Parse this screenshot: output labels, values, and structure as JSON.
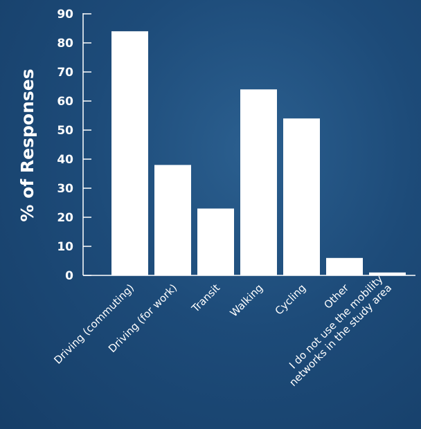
{
  "chart_data": {
    "type": "bar",
    "title": "",
    "xlabel": "",
    "ylabel": "% of Responses",
    "ylim": [
      0,
      90
    ],
    "yticks": [
      0,
      10,
      20,
      30,
      40,
      50,
      60,
      70,
      80,
      90
    ],
    "grid": false,
    "categories": [
      "Driving (commuting)",
      "Driving (for work)",
      "Transit",
      "Walking",
      "Cycling",
      "Other",
      [
        "I do not use the mobility",
        "networks in the study area"
      ]
    ],
    "values": [
      84,
      38,
      23,
      64,
      54,
      6,
      1
    ],
    "colors": {
      "bar": "#ffffff",
      "axis": "#ffffff",
      "background": "#1c4a78"
    }
  }
}
